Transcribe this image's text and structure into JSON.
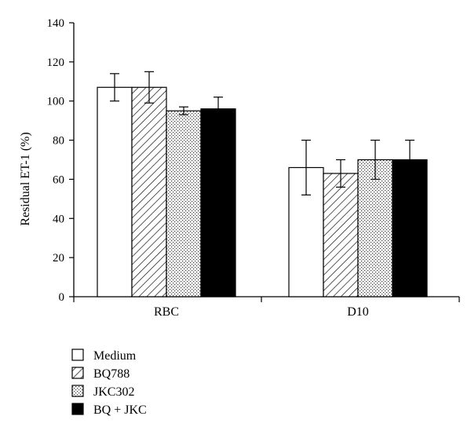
{
  "chart_data": {
    "type": "bar",
    "categories": [
      "RBC",
      "D10"
    ],
    "ylabel": "Residual ET-1 (%)",
    "xlabel": "",
    "title": "",
    "ylim": [
      0,
      140
    ],
    "yticks": [
      0,
      20,
      40,
      60,
      80,
      100,
      120,
      140
    ],
    "grid": false,
    "legend_position": "bottom-left",
    "series": [
      {
        "name": "Medium",
        "pattern": "white",
        "values": [
          107,
          66
        ],
        "errors": [
          7,
          14
        ]
      },
      {
        "name": "BQ788",
        "pattern": "hatched",
        "values": [
          107,
          63
        ],
        "errors": [
          8,
          7
        ]
      },
      {
        "name": "JKC302",
        "pattern": "dotted",
        "values": [
          95,
          70
        ],
        "errors": [
          2,
          10
        ]
      },
      {
        "name": "BQ + JKC",
        "pattern": "black",
        "values": [
          96,
          70
        ],
        "errors": [
          6,
          10
        ]
      }
    ]
  }
}
